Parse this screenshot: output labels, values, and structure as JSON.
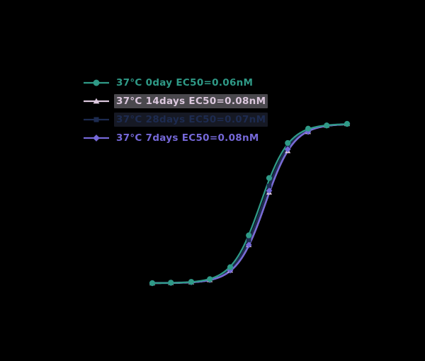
{
  "figure": {
    "background": "#000000"
  },
  "chart_data": {
    "type": "line",
    "subtype": "dose-response-sigmoid",
    "title": "",
    "xlabel": "",
    "ylabel": "",
    "x_scale": "log10",
    "x_unit": "nM",
    "x_range_log10": [
      -4,
      1
    ],
    "ylim": [
      0,
      100
    ],
    "grid": false,
    "legend_position": "upper-left",
    "concentrations_nM": [
      0.0001,
      0.0003,
      0.001,
      0.003,
      0.01,
      0.03,
      0.1,
      0.3,
      1,
      3,
      10
    ],
    "series": [
      {
        "name": "37°C 0day EC50=0.06nM",
        "color": "#2f9a87",
        "marker": "circle",
        "ec50_nM": 0.06,
        "hill": 1.2,
        "responses_pct": [
          0,
          0.3,
          0.8,
          2.5,
          10,
          30,
          66,
          88,
          97,
          99,
          100
        ]
      },
      {
        "name": "37°C 14days EC50=0.08nM",
        "color": "#dcc8de",
        "marker": "triangle",
        "ec50_nM": 0.08,
        "hill": 1.2,
        "responses_pct": [
          0,
          0.2,
          0.6,
          2,
          8,
          24,
          57,
          83,
          95,
          99,
          100
        ]
      },
      {
        "name": "37°C 28days EC50=0.07nM",
        "color": "#1d2b50",
        "marker": "square",
        "ec50_nM": 0.07,
        "hill": 1.2,
        "responses_pct": [
          0,
          0.3,
          0.7,
          2.2,
          9,
          27,
          61,
          85,
          96,
          99,
          100
        ]
      },
      {
        "name": "37°C 7days EC50=0.08nM",
        "color": "#7568d8",
        "marker": "diamond",
        "ec50_nM": 0.08,
        "hill": 1.2,
        "responses_pct": [
          0,
          0.2,
          0.6,
          2,
          8,
          24,
          58,
          84,
          95,
          99,
          100
        ]
      }
    ]
  },
  "legend": {
    "row_backgrounds": [
      "transparent",
      "rgba(186,180,193,0.40)",
      "rgba(40,46,66,0.55)",
      "transparent"
    ]
  }
}
